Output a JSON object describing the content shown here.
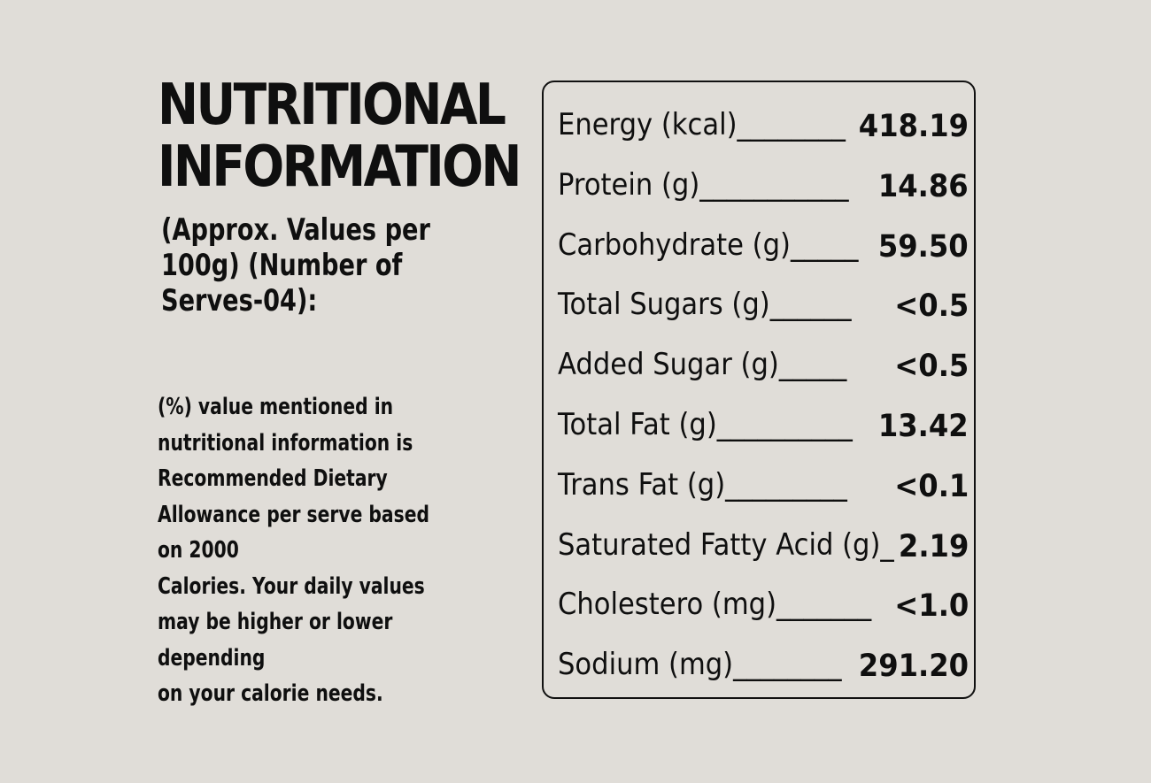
{
  "heading": {
    "line1": "NUTRITIONAL",
    "line2": "INFORMATION"
  },
  "subtitle": {
    "line1": "(Approx. Values per",
    "line2": "100g) (Number of",
    "line3": "Serves-04):"
  },
  "note": {
    "lines": [
      "(%) value mentioned in",
      "nutritional information is",
      "Recommended Dietary",
      "Allowance per serve based",
      "on 2000",
      "Calories. Your daily values",
      "may be higher or lower",
      "depending",
      "on your calorie needs."
    ]
  },
  "nutrients": [
    {
      "label": "Energy (kcal)________",
      "value": "418.19"
    },
    {
      "label": "Protein (g)___________",
      "value": "14.86"
    },
    {
      "label": "Carbohydrate (g)_____",
      "value": "59.50"
    },
    {
      "label": "Total Sugars (g)______",
      "value": "<0.5"
    },
    {
      "label": "Added Sugar (g)_____",
      "value": "<0.5"
    },
    {
      "label": "Total Fat (g)__________",
      "value": "13.42"
    },
    {
      "label": "Trans Fat (g)_________",
      "value": "<0.1"
    },
    {
      "label": "Saturated Fatty Acid (g)_",
      "value": "2.19"
    },
    {
      "label": "Cholestero (mg)_______",
      "value": "<1.0"
    },
    {
      "label": "Sodium (mg)________",
      "value": "291.20"
    }
  ],
  "colors": {
    "background": "#e0ddd8",
    "text": "#0f0f0f",
    "border": "#111111"
  }
}
